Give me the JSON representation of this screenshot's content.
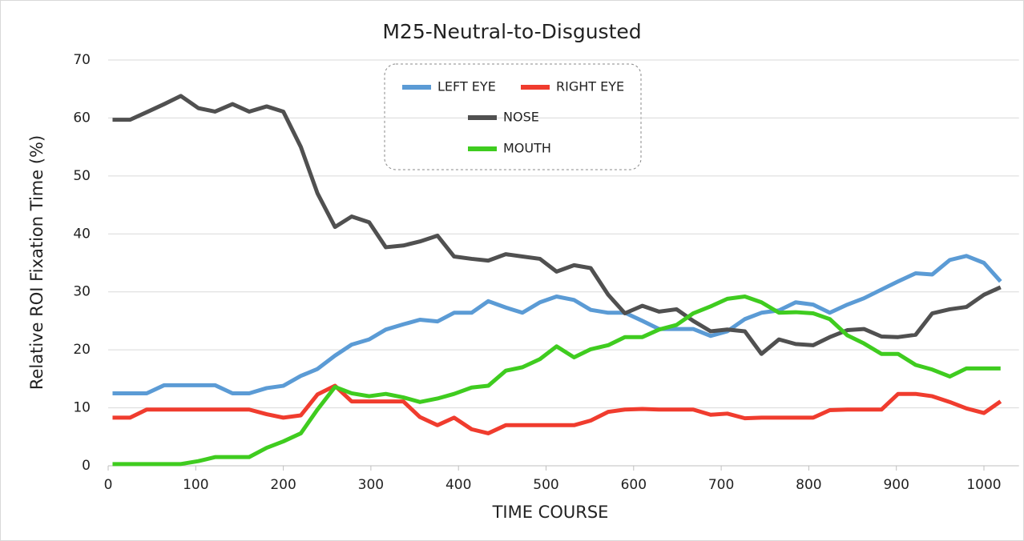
{
  "chart_data": {
    "type": "line",
    "title": "M25-Neutral-to-Disgusted",
    "xlabel": "TIME  COURSE",
    "ylabel": "Relative  ROI  Fixation  Time  (%)",
    "x": [
      5,
      25,
      44,
      64,
      83,
      103,
      122,
      142,
      161,
      181,
      200,
      220,
      239,
      259,
      278,
      298,
      317,
      337,
      356,
      376,
      395,
      415,
      434,
      454,
      473,
      493,
      512,
      532,
      551,
      571,
      590,
      610,
      629,
      649,
      668,
      688,
      707,
      727,
      746,
      766,
      785,
      805,
      824,
      844,
      863,
      883,
      902,
      922,
      941,
      961,
      980,
      1000,
      1019
    ],
    "series": [
      {
        "name": "LEFT EYE",
        "color": "#5b9bd5",
        "values": [
          12.5,
          12.5,
          12.5,
          13.9,
          13.9,
          13.9,
          13.9,
          12.5,
          12.5,
          13.4,
          13.8,
          15.5,
          16.7,
          19,
          20.9,
          21.8,
          23.5,
          24.4,
          25.2,
          24.9,
          26.4,
          26.4,
          28.4,
          27.3,
          26.4,
          28.2,
          29.2,
          28.6,
          26.9,
          26.4,
          26.4,
          25,
          23.6,
          23.6,
          23.6,
          22.4,
          23.2,
          25.3,
          26.4,
          26.8,
          28.2,
          27.8,
          26.4,
          27.8,
          28.9,
          30.4,
          31.8,
          33.2,
          33,
          35.5,
          36.2,
          35,
          31.8
        ]
      },
      {
        "name": "RIGHT EYE",
        "color": "#f03c2e",
        "values": [
          8.3,
          8.3,
          9.7,
          9.7,
          9.7,
          9.7,
          9.7,
          9.7,
          9.7,
          8.9,
          8.3,
          8.7,
          12.3,
          13.8,
          11.1,
          11.1,
          11.1,
          11.1,
          8.4,
          7,
          8.3,
          6.3,
          5.6,
          7,
          7,
          7,
          7,
          7,
          7.8,
          9.3,
          9.7,
          9.8,
          9.7,
          9.7,
          9.7,
          8.8,
          9,
          8.2,
          8.3,
          8.3,
          8.3,
          8.3,
          9.6,
          9.7,
          9.7,
          9.7,
          12.4,
          12.4,
          12,
          11,
          9.9,
          9.1,
          11.1
        ]
      },
      {
        "name": "NOSE",
        "color": "#505050",
        "values": [
          59.7,
          59.7,
          61,
          62.4,
          63.8,
          61.7,
          61.1,
          62.4,
          61.1,
          62,
          61.1,
          55,
          47,
          41.2,
          43,
          42,
          37.7,
          38,
          38.7,
          39.7,
          36.1,
          35.7,
          35.4,
          36.5,
          36.1,
          35.7,
          33.5,
          34.6,
          34.1,
          29.5,
          26.3,
          27.6,
          26.6,
          27,
          25,
          23.2,
          23.5,
          23.2,
          19.3,
          21.8,
          21,
          20.8,
          22.2,
          23.4,
          23.6,
          22.3,
          22.2,
          22.6,
          26.3,
          27,
          27.4,
          29.5,
          30.8
        ]
      },
      {
        "name": "MOUTH",
        "color": "#3fcc1f",
        "values": [
          0.3,
          0.3,
          0.3,
          0.3,
          0.3,
          0.8,
          1.5,
          1.5,
          1.5,
          3.1,
          4.2,
          5.6,
          9.7,
          13.6,
          12.5,
          12,
          12.4,
          11.8,
          11,
          11.6,
          12.4,
          13.5,
          13.8,
          16.4,
          17,
          18.4,
          20.6,
          18.7,
          20.1,
          20.8,
          22.2,
          22.2,
          23.5,
          24.3,
          26.3,
          27.5,
          28.8,
          29.2,
          28.2,
          26.4,
          26.5,
          26.3,
          25.3,
          22.5,
          21.1,
          19.3,
          19.3,
          17.4,
          16.6,
          15.4,
          16.8,
          16.8,
          16.8
        ]
      }
    ],
    "xlim": [
      0,
      1040
    ],
    "xticks": [
      0,
      100,
      200,
      300,
      400,
      500,
      600,
      700,
      800,
      900,
      1000
    ],
    "ylim": [
      0,
      70
    ],
    "yticks": [
      0,
      10,
      20,
      30,
      40,
      50,
      60,
      70
    ],
    "grid": true,
    "legend": "top"
  }
}
